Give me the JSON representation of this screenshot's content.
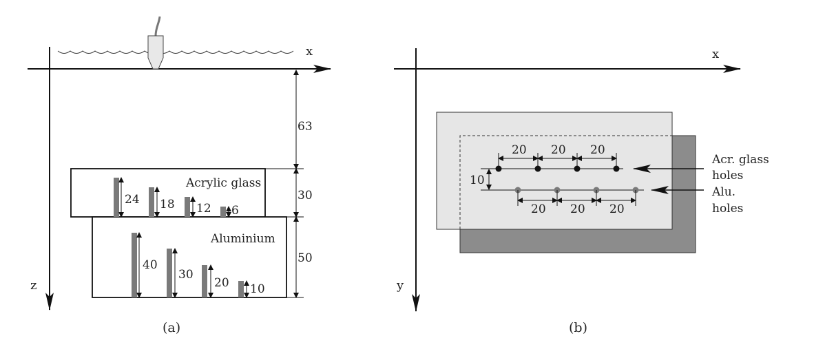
{
  "panel_a": {
    "x_axis_label": "x",
    "z_axis_label": "z",
    "caption": "(a)",
    "water_depth_label": "63",
    "acrylic": {
      "name": "Acrylic glass",
      "thickness_label": "30",
      "hole_labels": [
        "24",
        "18",
        "12",
        "6"
      ]
    },
    "aluminium": {
      "name": "Aluminium",
      "thickness_label": "50",
      "hole_labels": [
        "40",
        "30",
        "20",
        "10"
      ]
    }
  },
  "panel_b": {
    "x_axis_label": "x",
    "y_axis_label": "y",
    "caption": "(b)",
    "row_spacing_label": "10",
    "acrylic_spacing_labels": [
      "20",
      "20",
      "20"
    ],
    "aluminium_spacing_labels": [
      "20",
      "20",
      "20"
    ],
    "acrylic_holes_label_line1": "Acr. glass",
    "acrylic_holes_label_line2": "holes",
    "aluminium_holes_label_line1": "Alu.",
    "aluminium_holes_label_line2": "holes"
  },
  "colors": {
    "hole_bar": "#7a7a7a",
    "acrylic_plate": "#e6e6e6",
    "aluminium_plate": "#8c8c8c",
    "acrylic_hole_dot": "#111111",
    "aluminium_hole_dot": "#7a7a7a"
  }
}
